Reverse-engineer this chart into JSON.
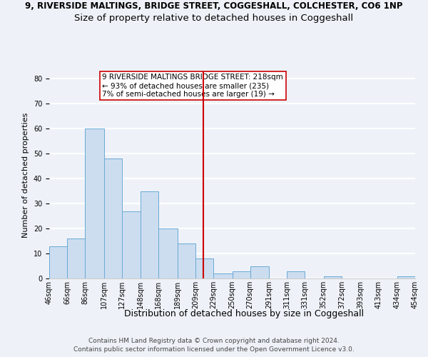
{
  "title": "9, RIVERSIDE MALTINGS, BRIDGE STREET, COGGESHALL, COLCHESTER, CO6 1NP",
  "subtitle": "Size of property relative to detached houses in Coggeshall",
  "xlabel": "Distribution of detached houses by size in Coggeshall",
  "ylabel": "Number of detached properties",
  "bin_edges": [
    46,
    66,
    86,
    107,
    127,
    148,
    168,
    189,
    209,
    229,
    250,
    270,
    291,
    311,
    331,
    352,
    372,
    393,
    413,
    434,
    454
  ],
  "bin_labels": [
    "46sqm",
    "66sqm",
    "86sqm",
    "107sqm",
    "127sqm",
    "148sqm",
    "168sqm",
    "189sqm",
    "209sqm",
    "229sqm",
    "250sqm",
    "270sqm",
    "291sqm",
    "311sqm",
    "331sqm",
    "352sqm",
    "372sqm",
    "393sqm",
    "413sqm",
    "434sqm",
    "454sqm"
  ],
  "counts": [
    13,
    16,
    60,
    48,
    27,
    35,
    20,
    14,
    8,
    2,
    3,
    5,
    0,
    3,
    0,
    1,
    0,
    0,
    0,
    1
  ],
  "bar_color": "#ccddf0",
  "bar_edge_color": "#6aaad4",
  "property_line_x": 218,
  "property_line_color": "#cc0000",
  "annotation_text": "9 RIVERSIDE MALTINGS BRIDGE STREET: 218sqm\n← 93% of detached houses are smaller (235)\n7% of semi-detached houses are larger (19) →",
  "annotation_box_color": "#ffffff",
  "annotation_box_edge_color": "#cc0000",
  "ylim": [
    0,
    83
  ],
  "yticks": [
    0,
    10,
    20,
    30,
    40,
    50,
    60,
    70,
    80
  ],
  "footnote1": "Contains HM Land Registry data © Crown copyright and database right 2024.",
  "footnote2": "Contains public sector information licensed under the Open Government Licence v3.0.",
  "bg_color": "#eef2f8",
  "plot_bg_color": "#eef2f8",
  "grid_color": "#ffffff",
  "title_fontsize": 8.5,
  "subtitle_fontsize": 9.5,
  "xlabel_fontsize": 9,
  "ylabel_fontsize": 8,
  "tick_fontsize": 7,
  "annotation_fontsize": 7.5,
  "footnote_fontsize": 6.5
}
